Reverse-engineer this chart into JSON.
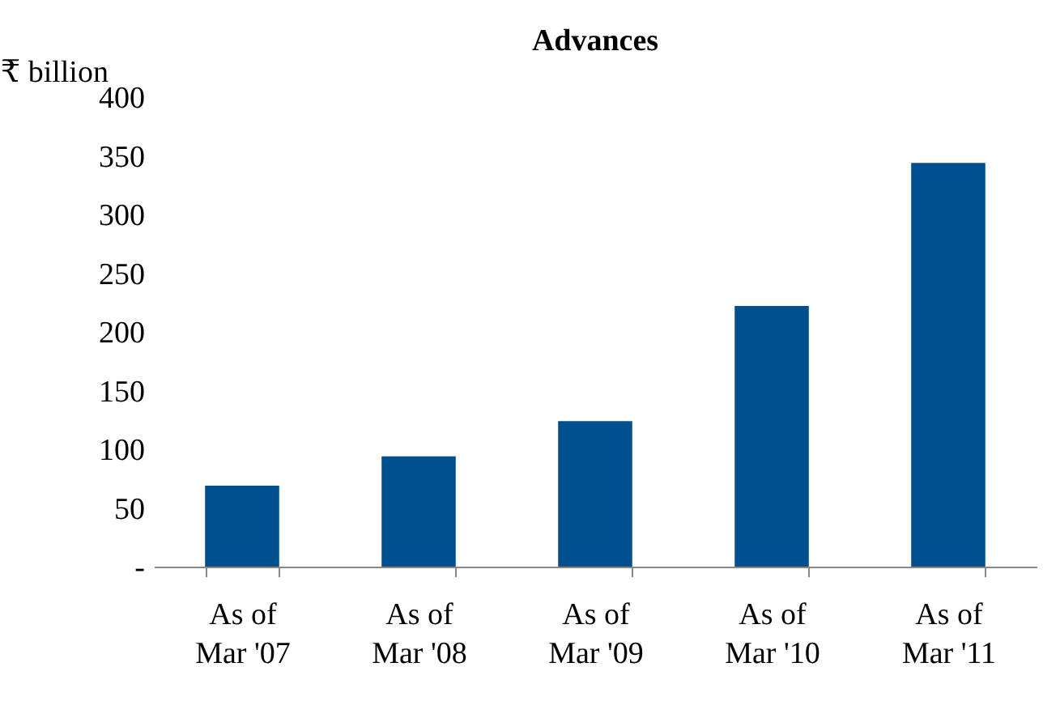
{
  "chart_data": {
    "type": "bar",
    "title": "Advances",
    "ylabel": "₹ billion",
    "categories": [
      "As of\nMar '07",
      "As of\nMar '08",
      "As of\nMar '09",
      "As of\nMar '10",
      "As of\nMar '11"
    ],
    "values": [
      69,
      94,
      124,
      222,
      344
    ],
    "color": "#00508f",
    "ylim": [
      0,
      400
    ],
    "yticks": [
      {
        "value": 0,
        "label": "-"
      },
      50,
      100,
      150,
      200,
      250,
      300,
      350,
      400
    ],
    "grid": false
  }
}
